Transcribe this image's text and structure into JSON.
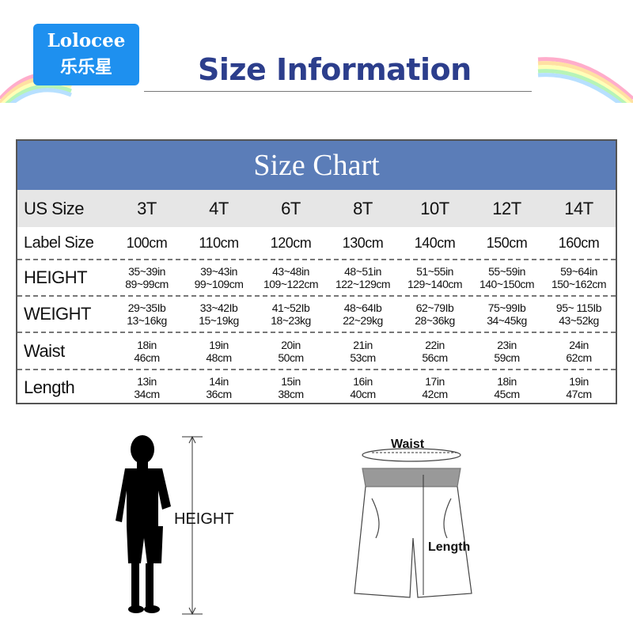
{
  "logo": {
    "en": "Lolocee",
    "cn": "乐乐星"
  },
  "header": {
    "title": "Size Information"
  },
  "table": {
    "title": "Size Chart",
    "header_label": "US Size",
    "sizes": [
      "3T",
      "4T",
      "6T",
      "8T",
      "10T",
      "12T",
      "14T"
    ],
    "rows": [
      {
        "label": "Label Size",
        "values": [
          [
            "100cm"
          ],
          [
            "110cm"
          ],
          [
            "120cm"
          ],
          [
            "130cm"
          ],
          [
            "140cm"
          ],
          [
            "150cm"
          ],
          [
            "160cm"
          ]
        ]
      },
      {
        "label": "HEIGHT",
        "values": [
          [
            "35~39in",
            "89~99cm"
          ],
          [
            "39~43in",
            "99~109cm"
          ],
          [
            "43~48in",
            "109~122cm"
          ],
          [
            "48~51in",
            "122~129cm"
          ],
          [
            "51~55in",
            "129~140cm"
          ],
          [
            "55~59in",
            "140~150cm"
          ],
          [
            "59~64in",
            "150~162cm"
          ]
        ]
      },
      {
        "label": "WEIGHT",
        "values": [
          [
            "29~35Ib",
            "13~16kg"
          ],
          [
            "33~42Ib",
            "15~19kg"
          ],
          [
            "41~52Ib",
            "18~23kg"
          ],
          [
            "48~64Ib",
            "22~29kg"
          ],
          [
            "62~79Ib",
            "28~36kg"
          ],
          [
            "75~99Ib",
            "34~45kg"
          ],
          [
            "95~ 115Ib",
            "43~52kg"
          ]
        ]
      },
      {
        "label": "Waist",
        "values": [
          [
            "18in",
            "46cm"
          ],
          [
            "19in",
            "48cm"
          ],
          [
            "20in",
            "50cm"
          ],
          [
            "21in",
            "53cm"
          ],
          [
            "22in",
            "56cm"
          ],
          [
            "23in",
            "59cm"
          ],
          [
            "24in",
            "62cm"
          ]
        ]
      },
      {
        "label": "Length",
        "values": [
          [
            "13in",
            "34cm"
          ],
          [
            "14in",
            "36cm"
          ],
          [
            "15in",
            "38cm"
          ],
          [
            "16in",
            "40cm"
          ],
          [
            "17in",
            "42cm"
          ],
          [
            "18in",
            "45cm"
          ],
          [
            "19in",
            "47cm"
          ]
        ]
      }
    ]
  },
  "figures": {
    "height_label": "HEIGHT",
    "waist_label": "Waist",
    "length_label": "Length"
  },
  "colors": {
    "chart_header": "#5b7db8",
    "logo": "#1e90ef",
    "title": "#2c3e8c"
  }
}
